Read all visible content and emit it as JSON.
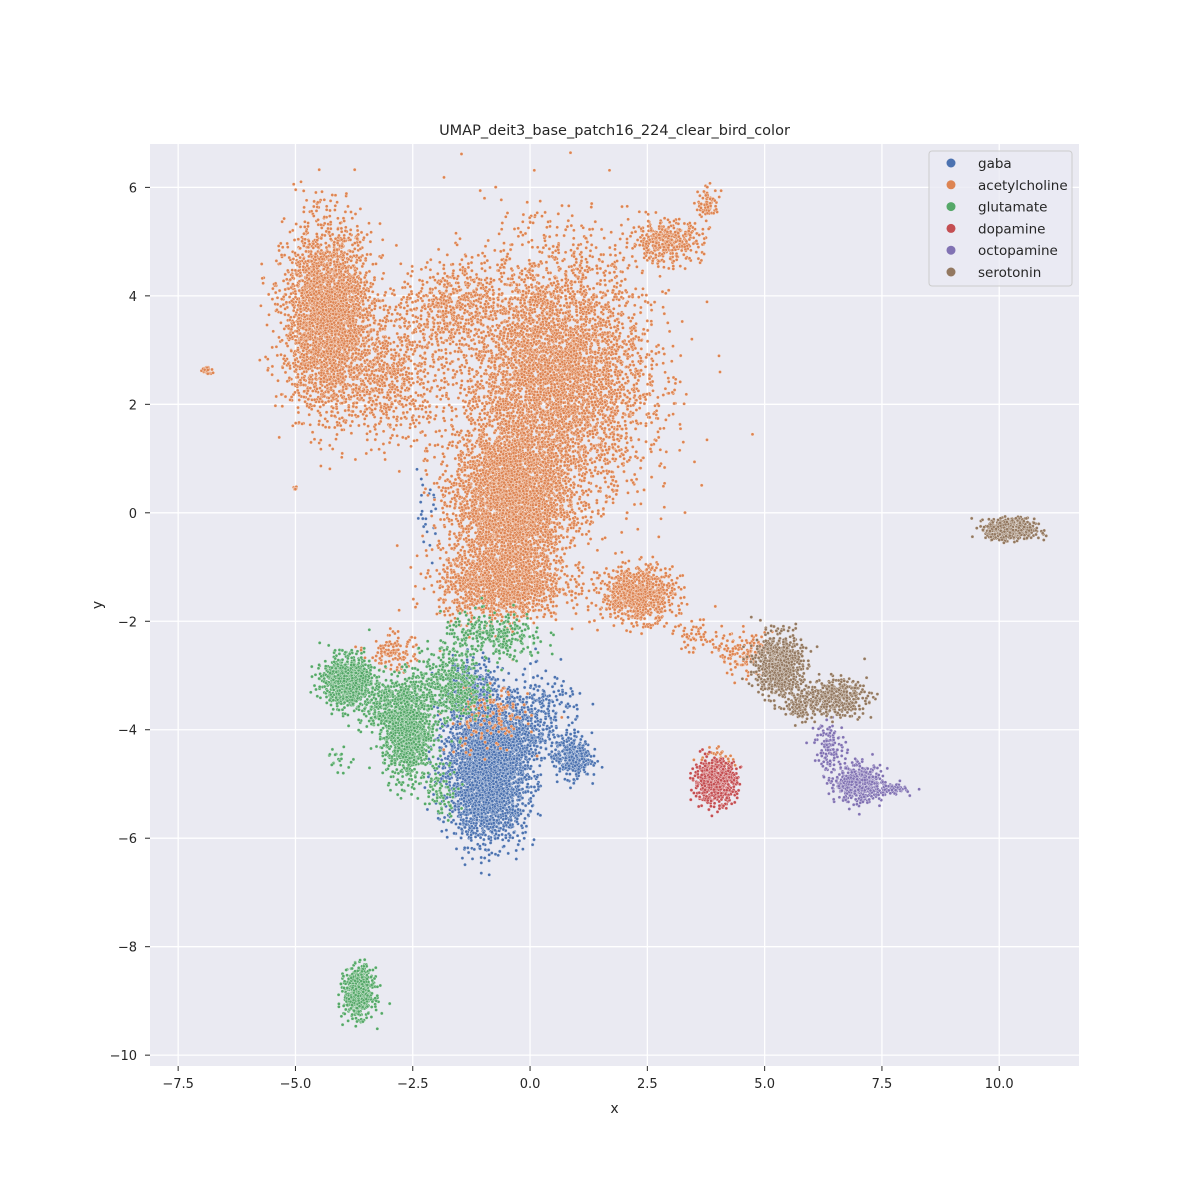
{
  "chart_data": {
    "type": "scatter",
    "title": "UMAP_deit3_base_patch16_224_clear_bird_color",
    "xlabel": "x",
    "ylabel": "y",
    "xlim": [
      -8.1,
      11.7
    ],
    "ylim": [
      -10.2,
      6.8
    ],
    "xticks": [
      -7.5,
      -5.0,
      -2.5,
      0.0,
      2.5,
      5.0,
      7.5,
      10.0
    ],
    "xtick_labels": [
      "−7.5",
      "−5.0",
      "−2.5",
      "0.0",
      "2.5",
      "5.0",
      "7.5",
      "10.0"
    ],
    "yticks": [
      -10,
      -8,
      -6,
      -4,
      -2,
      0,
      2,
      4,
      6
    ],
    "ytick_labels": [
      "−10",
      "−8",
      "−6",
      "−4",
      "−2",
      "0",
      "2",
      "4",
      "6"
    ],
    "grid": true,
    "background": "#eaeaf2",
    "legend_position": "top-right",
    "series": [
      {
        "name": "gaba",
        "color": "#4c72b0",
        "clusters": [
          {
            "cx": -0.9,
            "cy": -5.0,
            "rx": 0.75,
            "ry": 0.9,
            "n": 2600
          },
          {
            "cx": -0.7,
            "cy": -4.1,
            "rx": 0.95,
            "ry": 0.6,
            "n": 1200
          },
          {
            "cx": 0.9,
            "cy": -4.5,
            "rx": 0.35,
            "ry": 0.35,
            "n": 350
          },
          {
            "cx": -1.2,
            "cy": -3.2,
            "rx": 0.55,
            "ry": 0.5,
            "n": 300
          },
          {
            "cx": 0.3,
            "cy": -3.6,
            "rx": 0.8,
            "ry": 0.6,
            "n": 180
          },
          {
            "cx": -2.2,
            "cy": -0.2,
            "rx": 0.3,
            "ry": 0.9,
            "n": 25
          }
        ]
      },
      {
        "name": "acetylcholine",
        "color": "#dd8452",
        "clusters": [
          {
            "cx": 0.5,
            "cy": 2.5,
            "rx": 1.8,
            "ry": 2.1,
            "n": 6500
          },
          {
            "cx": -0.4,
            "cy": 0.2,
            "rx": 1.1,
            "ry": 1.2,
            "n": 3500
          },
          {
            "cx": -4.3,
            "cy": 3.6,
            "rx": 0.85,
            "ry": 1.5,
            "n": 3200
          },
          {
            "cx": -3.0,
            "cy": 2.5,
            "rx": 1.0,
            "ry": 1.0,
            "n": 700
          },
          {
            "cx": -1.7,
            "cy": 3.8,
            "rx": 1.0,
            "ry": 0.7,
            "n": 500
          },
          {
            "cx": -0.6,
            "cy": -1.3,
            "rx": 1.2,
            "ry": 0.6,
            "n": 1500
          },
          {
            "cx": 2.3,
            "cy": -1.5,
            "rx": 0.7,
            "ry": 0.45,
            "n": 900
          },
          {
            "cx": 2.9,
            "cy": 5.0,
            "rx": 0.7,
            "ry": 0.35,
            "n": 400
          },
          {
            "cx": 3.8,
            "cy": 5.7,
            "rx": 0.2,
            "ry": 0.25,
            "n": 90
          },
          {
            "cx": -6.9,
            "cy": 2.62,
            "rx": 0.12,
            "ry": 0.07,
            "n": 25
          },
          {
            "cx": -5.0,
            "cy": 0.45,
            "rx": 0.05,
            "ry": 0.04,
            "n": 6
          },
          {
            "cx": 4.6,
            "cy": -2.6,
            "rx": 0.55,
            "ry": 0.35,
            "n": 150
          },
          {
            "cx": -2.9,
            "cy": -2.6,
            "rx": 0.5,
            "ry": 0.3,
            "n": 120
          },
          {
            "cx": -0.9,
            "cy": -3.8,
            "rx": 0.8,
            "ry": 0.6,
            "n": 150
          },
          {
            "cx": 3.6,
            "cy": -2.3,
            "rx": 0.6,
            "ry": 0.25,
            "n": 60
          },
          {
            "cx": 4.0,
            "cy": -4.6,
            "rx": 0.3,
            "ry": 0.3,
            "n": 60
          }
        ]
      },
      {
        "name": "glutamate",
        "color": "#55a868",
        "clusters": [
          {
            "cx": -3.9,
            "cy": -3.1,
            "rx": 0.45,
            "ry": 0.4,
            "n": 1000
          },
          {
            "cx": -2.6,
            "cy": -4.0,
            "rx": 0.45,
            "ry": 0.85,
            "n": 1100
          },
          {
            "cx": -3.1,
            "cy": -3.6,
            "rx": 0.5,
            "ry": 0.45,
            "n": 300
          },
          {
            "cx": -1.7,
            "cy": -3.2,
            "rx": 0.6,
            "ry": 0.6,
            "n": 450
          },
          {
            "cx": -0.8,
            "cy": -2.3,
            "rx": 1.0,
            "ry": 0.4,
            "n": 300
          },
          {
            "cx": -3.65,
            "cy": -8.85,
            "rx": 0.28,
            "ry": 0.4,
            "n": 600
          },
          {
            "cx": -4.05,
            "cy": -4.55,
            "rx": 0.25,
            "ry": 0.2,
            "n": 20
          },
          {
            "cx": -1.9,
            "cy": -5.1,
            "rx": 0.35,
            "ry": 0.45,
            "n": 80
          }
        ]
      },
      {
        "name": "dopamine",
        "color": "#c44e52",
        "clusters": [
          {
            "cx": 3.95,
            "cy": -4.95,
            "rx": 0.4,
            "ry": 0.35,
            "n": 650
          }
        ]
      },
      {
        "name": "octopamine",
        "color": "#8172b3",
        "clusters": [
          {
            "cx": 7.0,
            "cy": -5.0,
            "rx": 0.45,
            "ry": 0.3,
            "n": 550
          },
          {
            "cx": 7.7,
            "cy": -5.1,
            "rx": 0.3,
            "ry": 0.1,
            "n": 60
          },
          {
            "cx": 6.4,
            "cy": -4.3,
            "rx": 0.3,
            "ry": 0.4,
            "n": 120
          }
        ]
      },
      {
        "name": "serotonin",
        "color": "#937860",
        "clusters": [
          {
            "cx": 5.3,
            "cy": -2.8,
            "rx": 0.45,
            "ry": 0.5,
            "n": 800
          },
          {
            "cx": 6.5,
            "cy": -3.4,
            "rx": 0.6,
            "ry": 0.3,
            "n": 400
          },
          {
            "cx": 5.8,
            "cy": -3.5,
            "rx": 0.3,
            "ry": 0.3,
            "n": 150
          },
          {
            "cx": 10.25,
            "cy": -0.3,
            "rx": 0.45,
            "ry": 0.17,
            "n": 700
          }
        ]
      }
    ]
  }
}
